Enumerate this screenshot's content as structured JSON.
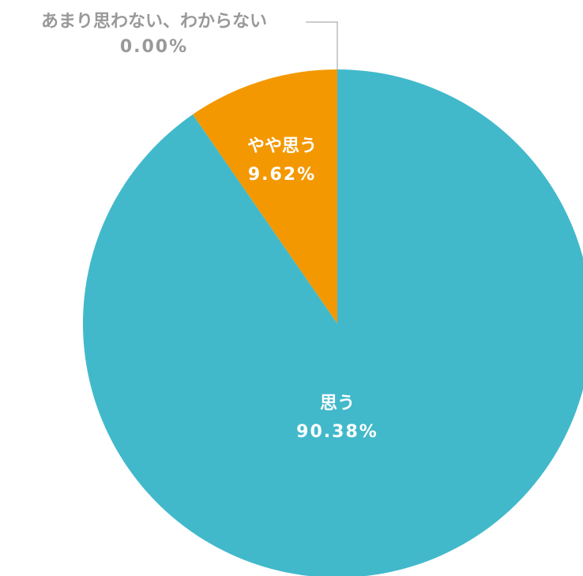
{
  "chart_data": {
    "type": "pie",
    "categories": [
      "思う",
      "やや思う",
      "あまり思わない、わからない"
    ],
    "values": [
      90.38,
      9.62,
      0.0
    ],
    "value_labels": [
      "90.38%",
      "9.62%",
      "0.00%"
    ],
    "colors": [
      "#41b9cb",
      "#f39800",
      "#999999"
    ],
    "label_colors": [
      "#ffffff",
      "#ffffff",
      "#999999"
    ]
  }
}
